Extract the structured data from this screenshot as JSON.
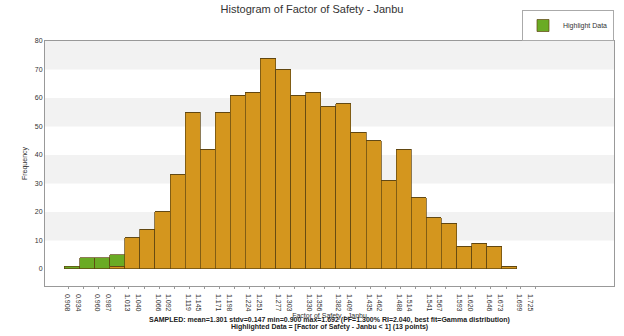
{
  "chart_data": {
    "type": "histogram",
    "title": "Histogram of Factor of Safety - Janbu",
    "x_label": "Factor of Safety - Janbu",
    "y_label": "Frequency",
    "annotations": [
      "SAMPLED: mean=1.301 stdv=0.147 min=0.900 max=1.692 (PF=1.300% RI=2.040, best fit=Gamma distribution)",
      "Highlighted Data = [Factor of Safety - Janbu < 1] (13 points)"
    ],
    "bins": [
      0.9,
      0.9264,
      0.9528,
      0.9792,
      1.0056,
      1.032,
      1.0584,
      1.0848,
      1.1112,
      1.1376,
      1.164,
      1.1904,
      1.2168,
      1.2432,
      1.2696,
      1.296,
      1.3224,
      1.3488,
      1.3752,
      1.4016,
      1.428,
      1.4544,
      1.4808,
      1.5072,
      1.5336,
      1.56,
      1.5864,
      1.6128,
      1.6392,
      1.6656,
      1.692
    ],
    "series": [
      {
        "color": "#d4961e",
        "values": [
          0,
          0,
          0,
          1,
          11,
          14,
          20,
          33,
          55,
          42,
          55,
          61,
          62,
          74,
          70,
          61,
          62,
          57,
          58,
          48,
          45,
          31,
          42,
          25,
          18,
          16,
          8,
          9,
          8,
          1
        ]
      },
      {
        "name": "Highlight Data",
        "color": "#6aab24",
        "values": [
          1,
          4,
          4,
          4,
          0,
          0,
          0,
          0,
          0,
          0,
          0,
          0,
          0,
          0,
          0,
          0,
          0,
          0,
          0,
          0,
          0,
          0,
          0,
          0,
          0,
          0,
          0,
          0,
          0,
          0
        ]
      }
    ],
    "stacked": true,
    "legend": "top-right",
    "grid": true,
    "xlim": [
      0.866,
      1.862
    ],
    "xticks": [
      0.908,
      0.934,
      {
        "value": 0.96,
        "label": "0.960"
      },
      0.987,
      1.013,
      {
        "value": 1.04,
        "label": "1.040"
      },
      1.066,
      1.092,
      1.119,
      1.145,
      1.171,
      1.198,
      1.224,
      1.251,
      1.277,
      1.303,
      {
        "value": 1.33,
        "label": "1.330"
      },
      1.356,
      1.382,
      1.409,
      1.435,
      1.462,
      1.488,
      1.514,
      1.541,
      1.567,
      1.593,
      {
        "value": 1.62,
        "label": "1.620"
      },
      1.646,
      1.673,
      1.699,
      1.725
    ],
    "ylim": [
      -6,
      80
    ],
    "yticks": [
      0,
      10,
      20,
      30,
      40,
      50,
      60,
      70,
      80
    ]
  }
}
